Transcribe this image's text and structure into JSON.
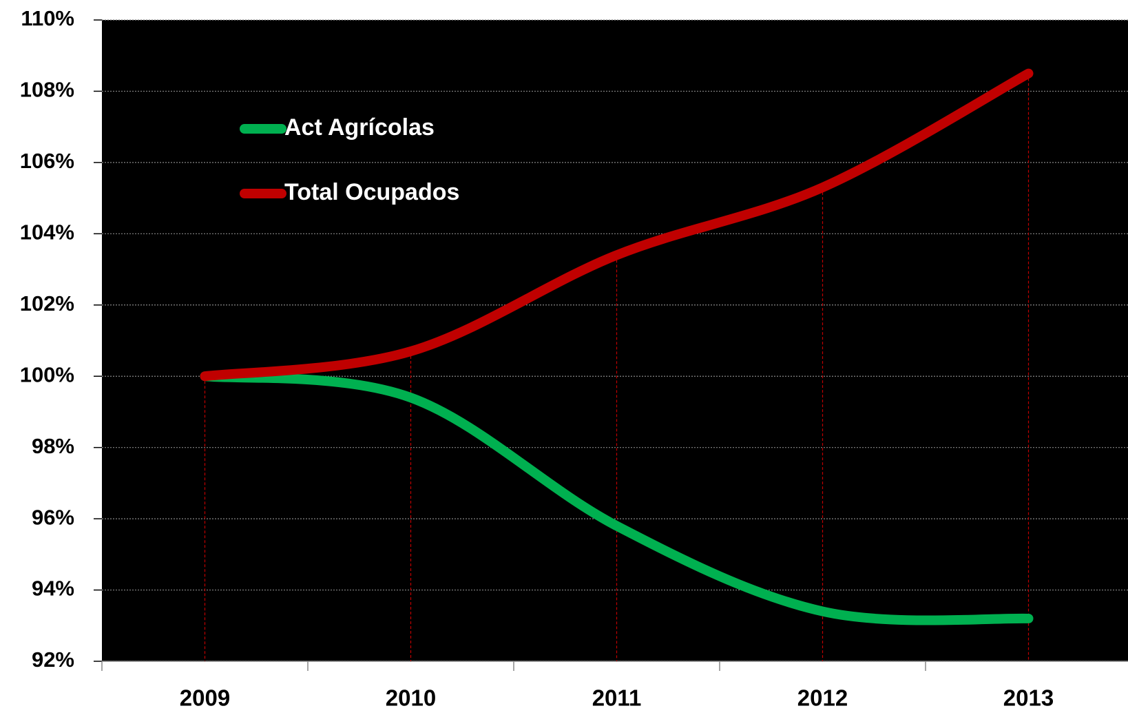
{
  "chart_data": {
    "type": "line",
    "categories": [
      "2009",
      "2010",
      "2011",
      "2012",
      "2013"
    ],
    "series": [
      {
        "name": "Act Agrícolas",
        "color": "#00b050",
        "values": [
          100,
          99.4,
          95.8,
          93.4,
          93.2
        ]
      },
      {
        "name": "Total Ocupados",
        "color": "#c00000",
        "values": [
          100,
          100.7,
          103.4,
          105.3,
          108.5
        ]
      }
    ],
    "ylim": [
      92,
      110
    ],
    "yticks": [
      {
        "value": 92,
        "label": "92%"
      },
      {
        "value": 94,
        "label": "94%"
      },
      {
        "value": 96,
        "label": "96%"
      },
      {
        "value": 98,
        "label": "98%"
      },
      {
        "value": 100,
        "label": "100%"
      },
      {
        "value": 102,
        "label": "102%"
      },
      {
        "value": 104,
        "label": "104%"
      },
      {
        "value": 106,
        "label": "106%"
      },
      {
        "value": 108,
        "label": "108%"
      },
      {
        "value": 110,
        "label": "110%"
      }
    ],
    "grid": true,
    "legend": "top-left",
    "smooth": true,
    "drop_lines": true
  }
}
